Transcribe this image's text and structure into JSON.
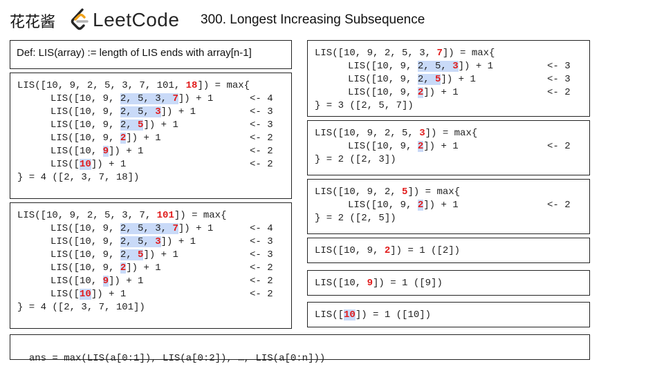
{
  "header": {
    "brand": "花花酱",
    "logo_text": "LeetCode",
    "title": "300. Longest Increasing Subsequence"
  },
  "definition": "Def: LIS(array) := length of LIS ends with array[n-1]",
  "panels": {
    "p18": {
      "l0": [
        "LIS([10, 9, 2, 5, 3, 7, 101, ",
        "18",
        "]) = max{"
      ],
      "l1": [
        "LIS([10, 9, ",
        "2, 5, 3, ",
        "7",
        "]) + 1",
        "<- 4"
      ],
      "l2": [
        "LIS([10, 9, ",
        "2, 5, ",
        "3",
        "]) + 1",
        "<- 3"
      ],
      "l3": [
        "LIS([10, 9, ",
        "2, ",
        "5",
        "]) + 1",
        "<- 3"
      ],
      "l4": [
        "LIS([10, 9, ",
        "2",
        "]) + 1",
        "<- 2"
      ],
      "l5": [
        "LIS([10, ",
        "9",
        "]) + 1",
        "<- 2"
      ],
      "l6": [
        "LIS([",
        "10",
        "]) + 1",
        "<- 2"
      ],
      "l7": "} = 4 ([2, 3, 7, 18])"
    },
    "p101": {
      "l0": [
        "LIS([10, 9, 2, 5, 3, 7, ",
        "101",
        "]) = max{"
      ],
      "l1": [
        "LIS([10, 9, ",
        "2, 5, 3, ",
        "7",
        "]) + 1",
        "<- 4"
      ],
      "l2": [
        "LIS([10, 9, ",
        "2, 5, ",
        "3",
        "]) + 1",
        "<- 3"
      ],
      "l3": [
        "LIS([10, 9, ",
        "2, ",
        "5",
        "]) + 1",
        "<- 3"
      ],
      "l4": [
        "LIS([10, 9, ",
        "2",
        "]) + 1",
        "<- 2"
      ],
      "l5": [
        "LIS([10, ",
        "9",
        "]) + 1",
        "<- 2"
      ],
      "l6": [
        "LIS([",
        "10",
        "]) + 1",
        "<- 2"
      ],
      "l7": "} = 4 ([2, 3, 7, 101])"
    },
    "p7": {
      "l0": [
        "LIS([10, 9, 2, 5, 3, ",
        "7",
        "]) = max{"
      ],
      "l1": [
        "LIS([10, 9, ",
        "2, 5, ",
        "3",
        "]) + 1",
        "<- 3"
      ],
      "l2": [
        "LIS([10, 9, ",
        "2, ",
        "5",
        "]) + 1",
        "<- 3"
      ],
      "l3": [
        "LIS([10, 9, ",
        "2",
        "]) + 1",
        "<- 2"
      ],
      "l4": "} = 3 ([2, 5, 7])"
    },
    "p3": {
      "l0": [
        "LIS([10, 9, 2, 5, ",
        "3",
        "]) = max{"
      ],
      "l1": [
        "LIS([10, 9, ",
        "2",
        "]) + 1",
        "<- 2"
      ],
      "l2": "} = 2 ([2, 3])"
    },
    "p5": {
      "l0": [
        "LIS([10, 9, 2, ",
        "5",
        "]) = max{"
      ],
      "l1": [
        "LIS([10, 9, ",
        "2",
        "]) + 1",
        "<- 2"
      ],
      "l2": "} = 2 ([2, 5])"
    },
    "p2": [
      "LIS([10, 9, ",
      "2",
      "]) = 1 ([2])"
    ],
    "p9": [
      "LIS([10, ",
      "9",
      "]) = 1 ([9])"
    ],
    "p10": [
      "LIS([",
      "10",
      "]) = 1 ([10])"
    ]
  },
  "answer": "ans = max(LIS(a[0:1]), LIS(a[0:2]), …, LIS(a[0:n]))",
  "colors": {
    "highlight": "#c9daf8",
    "emphasis": "#e01b1b"
  }
}
